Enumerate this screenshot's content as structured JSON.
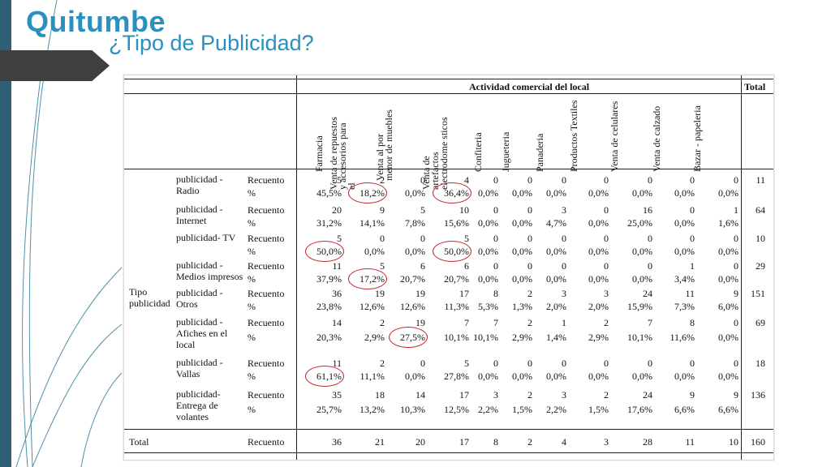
{
  "slide": {
    "brand": "Quitumbe",
    "subtitle": "¿Tipo de Publicidad?"
  },
  "table": {
    "group_header": "Actividad comercial del local",
    "total_header": "Total",
    "row_group_label": "Tipo publicidad",
    "columns": [
      "Farmacia",
      "Venta de repuestos y accesorios para el",
      "Venta al por menor de muebles",
      "Venta de artefactos electrodome sticos",
      "Confiteria",
      "Jugueteria",
      "Panaderia",
      "Productos Textiles",
      "Venta de celulares",
      "Venta de calzado",
      "Bazar - papeleria"
    ],
    "rows": [
      {
        "category": "publicidad - Radio",
        "count_label": "Recuento",
        "pct_label": "%",
        "counts": [
          "5",
          "2",
          "0",
          "4",
          "0",
          "0",
          "0",
          "0",
          "0",
          "0",
          "0"
        ],
        "total": "11",
        "pcts": [
          "45,5%",
          "18,2%",
          "0,0%",
          "36,4%",
          "0,0%",
          "0,0%",
          "0,0%",
          "0,0%",
          "0,0%",
          "0,0%",
          "0,0%"
        ]
      },
      {
        "category": "publicidad - Internet",
        "count_label": "Recuento",
        "pct_label": "%",
        "counts": [
          "20",
          "9",
          "5",
          "10",
          "0",
          "0",
          "3",
          "0",
          "16",
          "0",
          "1"
        ],
        "total": "64",
        "pcts": [
          "31,2%",
          "14,1%",
          "7,8%",
          "15,6%",
          "0,0%",
          "0,0%",
          "4,7%",
          "0,0%",
          "25,0%",
          "0,0%",
          "1,6%"
        ]
      },
      {
        "category": "publicidad- TV",
        "count_label": "Recuento",
        "pct_label": "%",
        "counts": [
          "5",
          "0",
          "0",
          "5",
          "0",
          "0",
          "0",
          "0",
          "0",
          "0",
          "0"
        ],
        "total": "10",
        "pcts": [
          "50,0%",
          "0,0%",
          "0,0%",
          "50,0%",
          "0,0%",
          "0,0%",
          "0,0%",
          "0,0%",
          "0,0%",
          "0,0%",
          "0,0%"
        ]
      },
      {
        "category": "publicidad - Medios impresos",
        "count_label": "Recuento",
        "pct_label": "%",
        "counts": [
          "11",
          "5",
          "6",
          "6",
          "0",
          "0",
          "0",
          "0",
          "0",
          "1",
          "0"
        ],
        "total": "29",
        "pcts": [
          "37,9%",
          "17,2%",
          "20,7%",
          "20,7%",
          "0,0%",
          "0,0%",
          "0,0%",
          "0,0%",
          "0,0%",
          "3,4%",
          "0,0%"
        ]
      },
      {
        "category": "publicidad - Otros",
        "count_label": "Recuento",
        "pct_label": "%",
        "counts": [
          "36",
          "19",
          "19",
          "17",
          "8",
          "2",
          "3",
          "3",
          "24",
          "11",
          "9"
        ],
        "total": "151",
        "pcts": [
          "23,8%",
          "12,6%",
          "12,6%",
          "11,3%",
          "5,3%",
          "1,3%",
          "2,0%",
          "2,0%",
          "15,9%",
          "7,3%",
          "6,0%"
        ]
      },
      {
        "category": "publicidad - Afiches en el local",
        "count_label": "Recuento",
        "pct_label": "%",
        "counts": [
          "14",
          "2",
          "19",
          "7",
          "7",
          "2",
          "1",
          "2",
          "7",
          "8",
          "0"
        ],
        "total": "69",
        "pcts": [
          "20,3%",
          "2,9%",
          "27,5%",
          "10,1%",
          "10,1%",
          "2,9%",
          "1,4%",
          "2,9%",
          "10,1%",
          "11,6%",
          "0,0%"
        ]
      },
      {
        "category": "publicidad - Vallas",
        "count_label": "Recuento",
        "pct_label": "%",
        "counts": [
          "11",
          "2",
          "0",
          "5",
          "0",
          "0",
          "0",
          "0",
          "0",
          "0",
          "0"
        ],
        "total": "18",
        "pcts": [
          "61,1%",
          "11,1%",
          "0,0%",
          "27,8%",
          "0,0%",
          "0,0%",
          "0,0%",
          "0,0%",
          "0,0%",
          "0,0%",
          "0,0%"
        ]
      },
      {
        "category": "publicidad- Entrega de volantes",
        "count_label": "Recuento",
        "pct_label": "%",
        "counts": [
          "35",
          "18",
          "14",
          "17",
          "3",
          "2",
          "3",
          "2",
          "24",
          "9",
          "9"
        ],
        "total": "136",
        "pcts": [
          "25,7%",
          "13,2%",
          "10,3%",
          "12,5%",
          "2,2%",
          "1,5%",
          "2,2%",
          "1,5%",
          "17,6%",
          "6,6%",
          "6,6%"
        ]
      }
    ],
    "total_row": {
      "label": "Total",
      "count_label": "Recuento",
      "counts": [
        "36",
        "21",
        "20",
        "17",
        "8",
        "2",
        "4",
        "3",
        "28",
        "11",
        "10"
      ],
      "total": "160"
    },
    "circled": [
      {
        "row": 0,
        "col": 1
      },
      {
        "row": 0,
        "col": 3
      },
      {
        "row": 2,
        "col": 0
      },
      {
        "row": 2,
        "col": 3
      },
      {
        "row": 3,
        "col": 1
      },
      {
        "row": 5,
        "col": 2
      },
      {
        "row": 6,
        "col": 0
      }
    ],
    "circle_color": "#c0282d"
  }
}
